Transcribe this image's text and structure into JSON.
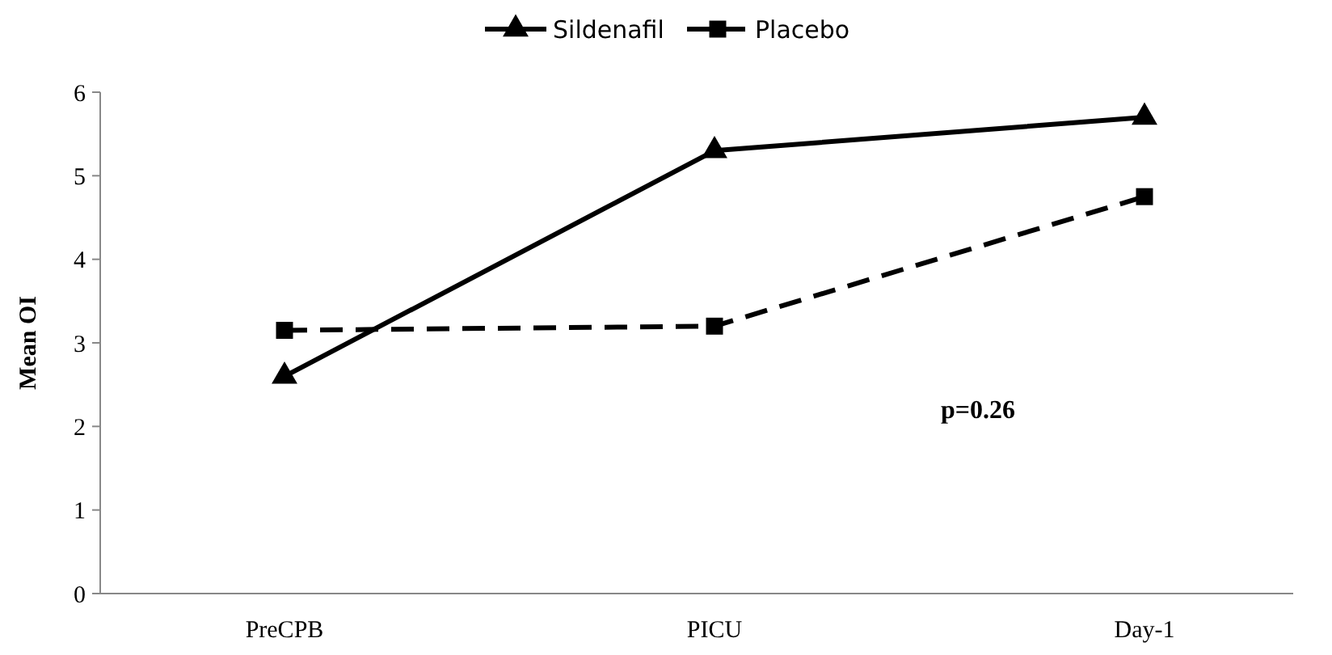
{
  "chart_data": {
    "type": "line",
    "categories": [
      "PreCPB",
      "PICU",
      "Day-1"
    ],
    "ylabel": "Mean OI",
    "ylim": [
      0,
      6
    ],
    "yticks": [
      0,
      1,
      2,
      3,
      4,
      5,
      6
    ],
    "grid": false,
    "legend": "top",
    "series": [
      {
        "name": "Sildenafil",
        "color": "#000000",
        "values": [
          2.6,
          5.3,
          5.7
        ],
        "marker": "triangle",
        "line_style": "solid"
      },
      {
        "name": "Placebo",
        "color": "#000000",
        "values": [
          3.15,
          3.2,
          4.75
        ],
        "marker": "square",
        "line_style": "dashed"
      }
    ],
    "annotations": [
      "p=0.26"
    ]
  }
}
